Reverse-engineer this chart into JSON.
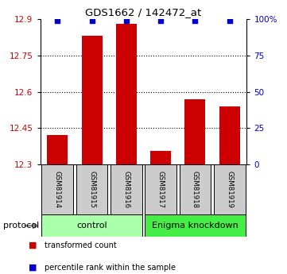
{
  "title": "GDS1662 / 142472_at",
  "samples": [
    "GSM81914",
    "GSM81915",
    "GSM81916",
    "GSM81917",
    "GSM81918",
    "GSM81919"
  ],
  "bar_values": [
    12.42,
    12.83,
    12.88,
    12.355,
    12.57,
    12.54
  ],
  "percentile_values": [
    12.895,
    12.895,
    12.895,
    12.895,
    12.895,
    12.895
  ],
  "ylim": [
    12.3,
    12.9
  ],
  "yticks_left": [
    12.3,
    12.45,
    12.6,
    12.75,
    12.9
  ],
  "yticks_right": [
    0,
    25,
    50,
    75,
    100
  ],
  "bar_color": "#cc0000",
  "dot_color": "#0000cc",
  "group_control_indices": [
    0,
    1,
    2
  ],
  "group_knockdown_indices": [
    3,
    4,
    5
  ],
  "group_control_label": "control",
  "group_knockdown_label": "Enigma knockdown",
  "group_control_color": "#aaffaa",
  "group_knockdown_color": "#44ee44",
  "protocol_label": "protocol",
  "legend_bar_label": "transformed count",
  "legend_dot_label": "percentile rank within the sample",
  "ylabel_left_color": "#cc0000",
  "ylabel_right_color": "#0000cc",
  "sample_box_color": "#cccccc",
  "bar_width": 0.6,
  "grid_yticks": [
    12.45,
    12.6,
    12.75
  ]
}
